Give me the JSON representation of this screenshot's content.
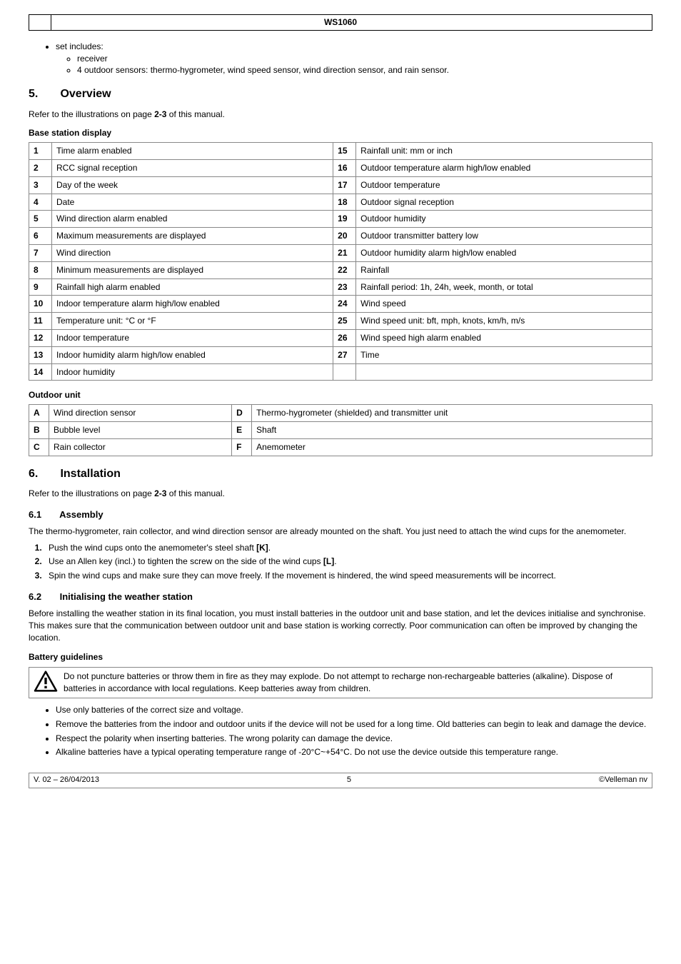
{
  "header": {
    "title": "WS1060"
  },
  "intro_bullets": {
    "item": "set includes:",
    "subs": {
      "a": "receiver",
      "b": "4 outdoor sensors: thermo-hygrometer, wind speed sensor, wind direction sensor, and rain sensor."
    }
  },
  "sec5": {
    "num": "5.",
    "title": "Overview",
    "refer": "Refer to the illustrations on page ",
    "refer_bold": "2-3",
    "refer_tail": " of this manual.",
    "base_station_label": "Base station display",
    "rows": [
      {
        "n": "1",
        "l": "Time alarm enabled",
        "n2": "15",
        "r": "Rainfall unit: mm or inch"
      },
      {
        "n": "2",
        "l": "RCC signal reception",
        "n2": "16",
        "r": "Outdoor temperature alarm high/low enabled"
      },
      {
        "n": "3",
        "l": "Day of the week",
        "n2": "17",
        "r": "Outdoor temperature"
      },
      {
        "n": "4",
        "l": "Date",
        "n2": "18",
        "r": "Outdoor signal reception"
      },
      {
        "n": "5",
        "l": "Wind direction alarm enabled",
        "n2": "19",
        "r": "Outdoor humidity"
      },
      {
        "n": "6",
        "l": "Maximum measurements are displayed",
        "n2": "20",
        "r": "Outdoor transmitter battery low"
      },
      {
        "n": "7",
        "l": "Wind direction",
        "n2": "21",
        "r": "Outdoor humidity alarm high/low enabled"
      },
      {
        "n": "8",
        "l": "Minimum measurements are displayed",
        "n2": "22",
        "r": "Rainfall"
      },
      {
        "n": "9",
        "l": "Rainfall high alarm enabled",
        "n2": "23",
        "r": "Rainfall period: 1h, 24h, week, month, or total"
      },
      {
        "n": "10",
        "l": "Indoor temperature alarm high/low enabled",
        "n2": "24",
        "r": "Wind speed"
      },
      {
        "n": "11",
        "l": "Temperature unit: °C or °F",
        "n2": "25",
        "r": "Wind speed unit: bft, mph, knots, km/h, m/s"
      },
      {
        "n": "12",
        "l": "Indoor temperature",
        "n2": "26",
        "r": "Wind speed high alarm enabled"
      },
      {
        "n": "13",
        "l": "Indoor humidity alarm high/low enabled",
        "n2": "27",
        "r": "Time"
      },
      {
        "n": "14",
        "l": "Indoor humidity",
        "n2": "",
        "r": ""
      }
    ],
    "outdoor_label": "Outdoor unit",
    "outdoor_rows": [
      {
        "a": "A",
        "al": "Wind direction sensor",
        "b": "D",
        "bl": "Thermo-hygrometer (shielded) and transmitter unit"
      },
      {
        "a": "B",
        "al": "Bubble level",
        "b": "E",
        "bl": "Shaft"
      },
      {
        "a": "C",
        "al": "Rain collector",
        "b": "F",
        "bl": "Anemometer"
      }
    ]
  },
  "sec6": {
    "num": "6.",
    "title": "Installation",
    "refer": "Refer to the illustrations on page ",
    "refer_bold": "2-3",
    "refer_tail": " of this manual.",
    "s61": {
      "num": "6.1",
      "title": "Assembly",
      "intro": "The thermo-hygrometer, rain collector, and wind direction sensor are already mounted on the shaft. You just need to attach the wind cups for the anemometer.",
      "steps": {
        "1": {
          "pre": "Push the wind cups onto the anemometer's steel shaft ",
          "bold": "[K]",
          "post": "."
        },
        "2": {
          "pre": "Use an Allen key (incl.) to tighten the screw on the side of the wind cups ",
          "bold": "[L]",
          "post": "."
        },
        "3": {
          "pre": "Spin the wind cups and make sure they can move freely. If the movement is hindered, the wind speed measurements will be incorrect.",
          "bold": "",
          "post": ""
        }
      }
    },
    "s62": {
      "num": "6.2",
      "title": "Initialising the weather station",
      "intro": "Before installing the weather station in its final location, you must install batteries in the outdoor unit and base station, and let the devices initialise and synchronise. This makes sure that the communication between outdoor unit and base station is working correctly. Poor communication can often be improved by changing the location.",
      "battery_label": "Battery guidelines",
      "warning": "Do not puncture batteries or throw them in fire as they may explode. Do not attempt to recharge non-rechargeable batteries (alkaline). Dispose of batteries in accordance with local regulations. Keep batteries away from children.",
      "guides": {
        "a": "Use only batteries of the correct size and voltage.",
        "b": "Remove the batteries from the indoor and outdoor units if the device will not be used for a long time. Old batteries can begin to leak and damage the device.",
        "c": "Respect the polarity when inserting batteries. The wrong polarity can damage the device.",
        "d": "Alkaline batteries have a typical operating temperature range of -20°C~+54°C. Do not use the device outside this temperature range."
      }
    }
  },
  "footer": {
    "left": "V. 02 – 26/04/2013",
    "mid": "5",
    "right": "©Velleman nv"
  }
}
